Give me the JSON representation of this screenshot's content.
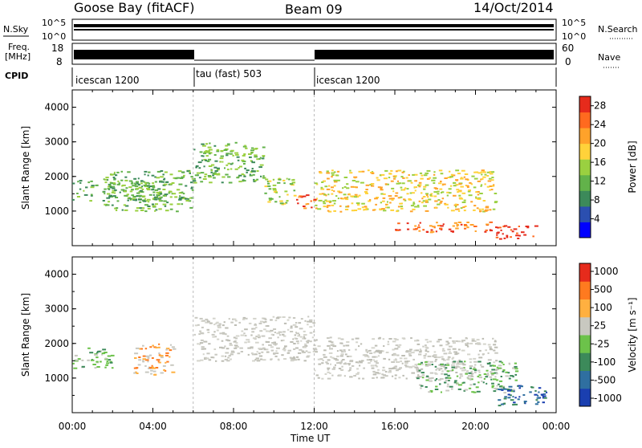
{
  "header": {
    "station": "Goose Bay (fitACF)",
    "beam": "Beam 09",
    "date": "14/Oct/2014"
  },
  "strip_labels": {
    "nsky": "N.Sky",
    "nsky_ticks": [
      "10^5",
      "10^0"
    ],
    "nsearch": "N.Search",
    "freq_line1": "Freq.",
    "freq_line2": "[MHz]",
    "freq_ticks": [
      "18",
      "8"
    ],
    "nave_ticks": [
      "60",
      "0"
    ],
    "nave": "Nave",
    "cpid": "CPID"
  },
  "cpid_segments": [
    {
      "label": "icescan 1200",
      "start_h": 0,
      "end_h": 6
    },
    {
      "label": "tau (fast) 503",
      "start_h": 6,
      "end_h": 12
    },
    {
      "label": "icescan 1200",
      "start_h": 12,
      "end_h": 24
    }
  ],
  "chart_data": [
    {
      "type": "heatmap",
      "title": "",
      "xlabel": "Time UT",
      "ylabel": "Slant Range [km]",
      "xlim_hours": [
        0,
        24
      ],
      "x_ticks": [
        "00:00",
        "04:00",
        "08:00",
        "12:00",
        "16:00",
        "20:00",
        "00:00"
      ],
      "ylim": [
        0,
        4500
      ],
      "y_ticks": [
        1000,
        2000,
        3000,
        4000
      ],
      "colorbar": {
        "label": "Power [dB]",
        "ticks": [
          4,
          8,
          12,
          16,
          20,
          24,
          28
        ],
        "range": [
          0,
          30
        ],
        "colors": [
          "#0000ff",
          "#2b4fb0",
          "#3c8a5a",
          "#62b24a",
          "#9ad040",
          "#ffd23a",
          "#ffa22a",
          "#ff6a1f",
          "#e62b1c"
        ]
      },
      "regions": [
        {
          "t0": 0.0,
          "t1": 4.5,
          "r0": 1300,
          "r1": 1900,
          "level": 12
        },
        {
          "t0": 1.5,
          "t1": 6.0,
          "r0": 1000,
          "r1": 2200,
          "level": 10
        },
        {
          "t0": 6.0,
          "t1": 9.5,
          "r0": 1800,
          "r1": 3000,
          "level": 12
        },
        {
          "t0": 9.5,
          "t1": 11.0,
          "r0": 1200,
          "r1": 2000,
          "level": 14
        },
        {
          "t0": 11.0,
          "t1": 12.0,
          "r0": 1100,
          "r1": 1500,
          "level": 26
        },
        {
          "t0": 12.0,
          "t1": 21.0,
          "r0": 1000,
          "r1": 2200,
          "level": 18
        },
        {
          "t0": 16.0,
          "t1": 21.0,
          "r0": 400,
          "r1": 700,
          "level": 26
        },
        {
          "t0": 21.0,
          "t1": 23.0,
          "r0": 200,
          "r1": 600,
          "level": 28
        }
      ]
    },
    {
      "type": "heatmap",
      "title": "",
      "xlabel": "Time UT",
      "ylabel": "Slant Range [km]",
      "xlim_hours": [
        0,
        24
      ],
      "x_ticks": [
        "00:00",
        "04:00",
        "08:00",
        "12:00",
        "16:00",
        "20:00",
        "00:00"
      ],
      "ylim": [
        0,
        4500
      ],
      "y_ticks": [
        1000,
        2000,
        3000,
        4000
      ],
      "colorbar": {
        "label": "Velocity [m s⁻¹]",
        "ticks": [
          1000,
          500,
          100,
          25,
          -25,
          -100,
          -500,
          -1000
        ],
        "colors": [
          "#1a3fb0",
          "#2f6fa0",
          "#3c8a5a",
          "#6cc24a",
          "#c8c8c0",
          "#ffb040",
          "#ff7a1f",
          "#e62b1c"
        ]
      },
      "regions": [
        {
          "t0": 0.0,
          "t1": 2.0,
          "r0": 1300,
          "r1": 1900,
          "level": "green"
        },
        {
          "t0": 3.0,
          "t1": 5.0,
          "r0": 1100,
          "r1": 2000,
          "level": "orange"
        },
        {
          "t0": 6.0,
          "t1": 12.0,
          "r0": 1500,
          "r1": 2800,
          "level": "gray"
        },
        {
          "t0": 12.0,
          "t1": 21.0,
          "r0": 1000,
          "r1": 2200,
          "level": "gray"
        },
        {
          "t0": 17.0,
          "t1": 22.0,
          "r0": 600,
          "r1": 1500,
          "level": "green"
        },
        {
          "t0": 21.0,
          "t1": 23.5,
          "r0": 200,
          "r1": 800,
          "level": "blue"
        }
      ]
    }
  ]
}
